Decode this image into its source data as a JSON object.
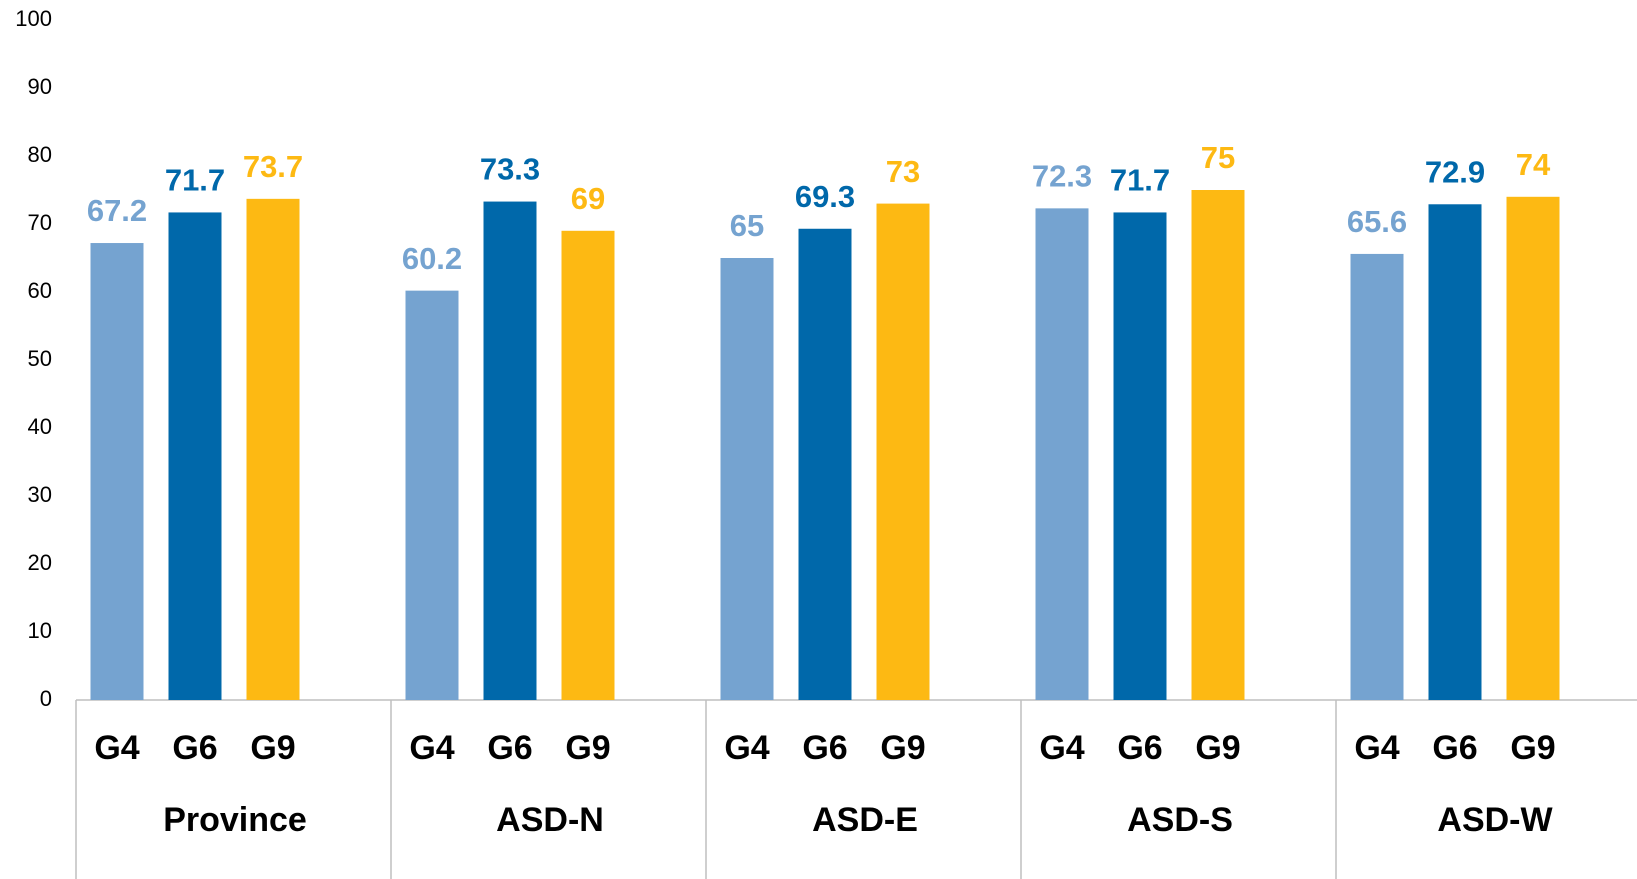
{
  "chart_data": {
    "type": "bar",
    "categories": [
      "Province",
      "ASD-N",
      "ASD-E",
      "ASD-S",
      "ASD-W"
    ],
    "series": [
      {
        "name": "G4",
        "color": "#75a3d0",
        "values": [
          67.2,
          60.2,
          65,
          72.3,
          65.6
        ]
      },
      {
        "name": "G6",
        "color": "#0068aa",
        "values": [
          71.7,
          73.3,
          69.3,
          71.7,
          72.9
        ]
      },
      {
        "name": "G9",
        "color": "#fdb913",
        "values": [
          73.7,
          69,
          73,
          75,
          74
        ]
      }
    ],
    "ylim": [
      0,
      100
    ],
    "yticks": [
      0,
      10,
      20,
      30,
      40,
      50,
      60,
      70,
      80,
      90,
      100
    ],
    "grid": false
  }
}
